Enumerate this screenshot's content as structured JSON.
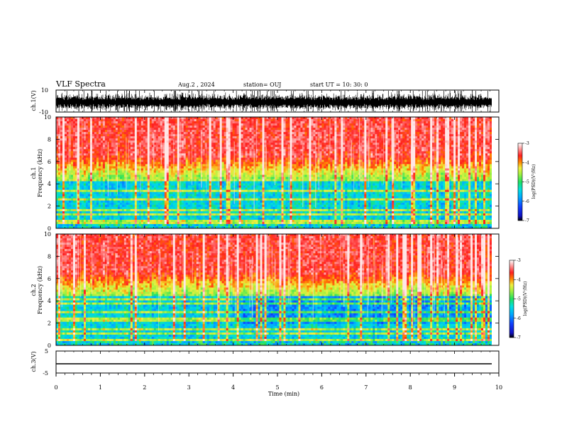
{
  "header": {
    "title": "VLF Spectra",
    "date": "Aug.2 , 2024",
    "station": "station= OUJ",
    "start": "start UT = 10: 30: 0"
  },
  "colors": {
    "colormap": [
      "#1010c0",
      "#1040ff",
      "#00a8ff",
      "#00e0e0",
      "#20e060",
      "#a0f040",
      "#f0f040",
      "#ff8000",
      "#ff2020",
      "#ff8080",
      "#ffd0d0",
      "#ffffff"
    ],
    "trace": "#000000"
  },
  "chart_data": [
    {
      "type": "line",
      "id": "ch1_waveform",
      "ylabel": "ch.1(V)",
      "ylim": [
        -10,
        10
      ],
      "yticks": [
        "10",
        "-10"
      ],
      "xlim": [
        0,
        10
      ],
      "description_of_signal": ""
    },
    {
      "type": "heatmap",
      "id": "ch1_spectrogram",
      "ylabel": "ch.1",
      "ylabel2": "Frequency (kHz)",
      "ylim": [
        0,
        10
      ],
      "yticks": [
        "0",
        "2",
        "4",
        "6",
        "8",
        "10"
      ],
      "xlim": [
        0,
        9.85
      ],
      "colorbar": {
        "label": "log(PSD)(V²/Hz)",
        "ticks": [
          "-3",
          "-4",
          "-5",
          "-6",
          "-7"
        ],
        "range": [
          -7,
          -3
        ]
      }
    },
    {
      "type": "heatmap",
      "id": "ch2_spectrogram",
      "ylabel": "ch.2",
      "ylabel2": "Frequency (kHz)",
      "ylim": [
        0,
        10
      ],
      "yticks": [
        "0",
        "2",
        "4",
        "6",
        "8",
        "10"
      ],
      "xlim": [
        0,
        9.85
      ],
      "colorbar": {
        "label": "log(PSD)(V²/Hz)",
        "ticks": [
          "-3",
          "-4",
          "-5",
          "-6",
          "-7"
        ],
        "range": [
          -7,
          -3
        ]
      }
    },
    {
      "type": "line",
      "id": "ch3_waveform",
      "ylabel": "ch.3(V)",
      "ylim": [
        -5,
        5
      ],
      "yticks": [
        "5",
        "-5"
      ],
      "x": [
        0,
        9.85
      ],
      "y": [
        -1.5,
        -1.5
      ]
    }
  ],
  "xaxis": {
    "label": "Time (min)",
    "ticks": [
      "0",
      "1",
      "2",
      "3",
      "4",
      "5",
      "6",
      "7",
      "8",
      "9",
      "10"
    ],
    "range": [
      0,
      10
    ]
  }
}
